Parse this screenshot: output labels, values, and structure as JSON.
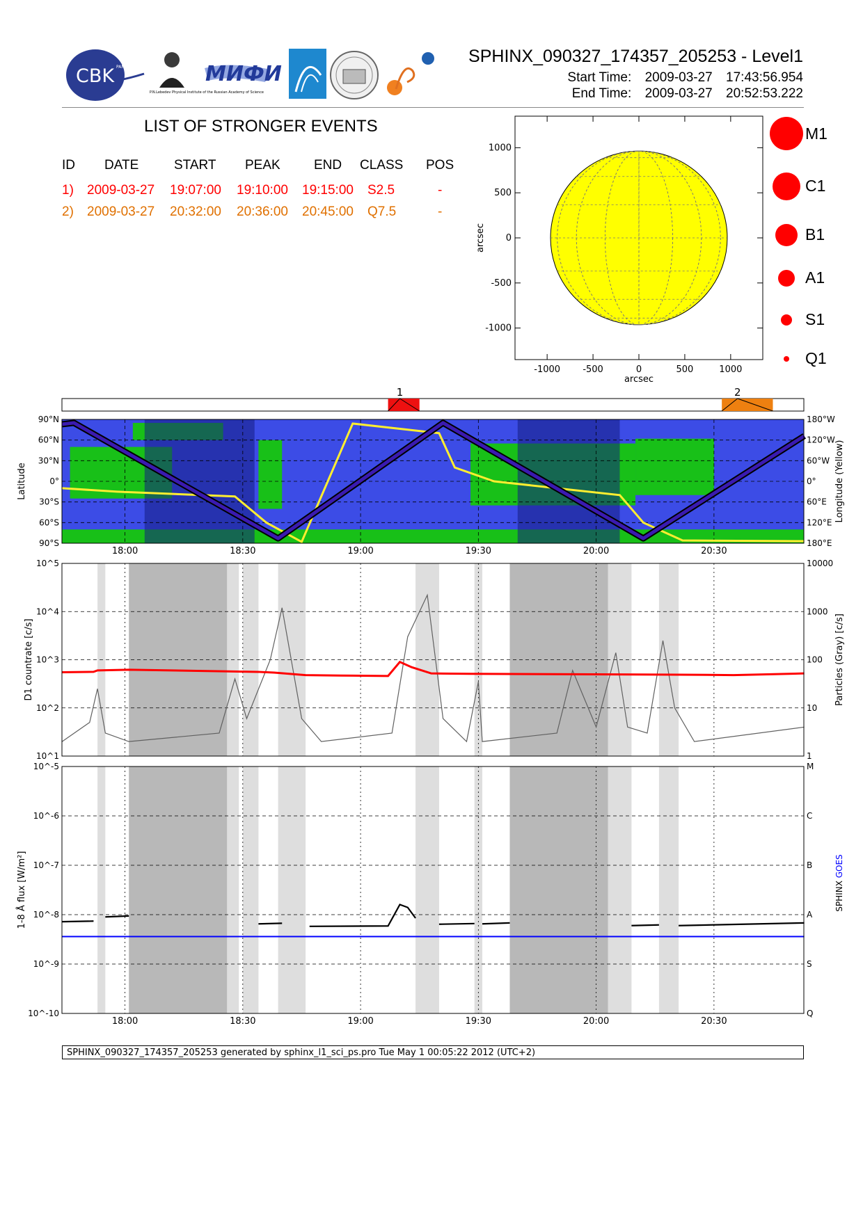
{
  "header": {
    "title": "SPHINX_090327_174357_205253 - Level1",
    "start_label": "Start Time:",
    "start_date": "2009-03-27",
    "start_time": "17:43:56.954",
    "end_label": "End Time:",
    "end_date": "2009-03-27",
    "end_time": "20:52:53.222",
    "logos": {
      "cbk": "CBK",
      "cbk_sub": "PAN",
      "lebedev": "P.N.Lebedev Physical Institute of the Russian Academy of Science",
      "mifi": "MИФИ"
    }
  },
  "events": {
    "title": "LIST OF STRONGER EVENTS",
    "columns": [
      "ID",
      "DATE",
      "START",
      "PEAK",
      "END",
      "CLASS",
      "POS"
    ],
    "rows": [
      {
        "id": "1)",
        "date": "2009-03-27",
        "start": "19:07:00",
        "peak": "19:10:00",
        "end": "19:15:00",
        "class": "S2.5",
        "pos": "-",
        "color": "#ff0000"
      },
      {
        "id": "2)",
        "date": "2009-03-27",
        "start": "20:32:00",
        "peak": "20:36:00",
        "end": "20:45:00",
        "class": "Q7.5",
        "pos": "-",
        "color": "#e07000"
      }
    ]
  },
  "class_legend": [
    "M1",
    "C1",
    "B1",
    "A1",
    "S1",
    "Q1"
  ],
  "colors": {
    "event1": "#ee1010",
    "event2": "#ee8010",
    "ocean": "#3c4ce6",
    "land": "#18c018",
    "night": "#141e82",
    "longitude_line": "#ffee30",
    "countrate": "#ff0000",
    "particles": "#606060",
    "goes": "#0000ff",
    "sun": "#ffff00"
  },
  "chart_data": [
    {
      "type": "scatter",
      "name": "solar-disk-map",
      "xlabel": "arcsec",
      "ylabel": "arcsec",
      "xlim": [
        -1350,
        1350
      ],
      "ylim": [
        -1350,
        1350
      ],
      "xticks": [
        "-1000",
        "-500",
        "0",
        "500",
        "1000"
      ],
      "yticks": [
        "-1000",
        "-500",
        "0",
        "500",
        "1000"
      ],
      "xtick_values": [
        -1000,
        -500,
        0,
        500,
        1000
      ],
      "ytick_values": [
        -1000,
        -500,
        0,
        500,
        1000
      ],
      "solar_radius_arcsec": 963,
      "points": []
    },
    {
      "type": "bar",
      "name": "event-timeline",
      "event_ids": [
        "1",
        "2"
      ],
      "event_windows": [
        [
          "19:07",
          "19:15"
        ],
        [
          "20:32",
          "20:45"
        ]
      ],
      "event_peaks": [
        "19:10",
        "20:36"
      ]
    },
    {
      "type": "line",
      "name": "orbit-track",
      "ylabel": "Latitude",
      "y2label": "Longitude (Yellow)",
      "left_ticks": [
        "90°N",
        "60°N",
        "30°N",
        "0°",
        "30°S",
        "60°S",
        "90°S"
      ],
      "right_ticks": [
        "180°W",
        "120°W",
        "60°W",
        "0°",
        "60°E",
        "120°E",
        "180°E"
      ],
      "x_ticks": [
        "18:00",
        "18:30",
        "19:00",
        "19:30",
        "20:00",
        "20:30"
      ],
      "latitude_track": {
        "x": [
          "17:44",
          "17:47",
          "18:39",
          "19:21",
          "20:12",
          "20:53"
        ],
        "y": [
          83,
          85,
          -83,
          85,
          -83,
          66
        ]
      },
      "night_intervals": [
        [
          "18:05",
          "18:33"
        ],
        [
          "19:40",
          "20:06"
        ]
      ]
    },
    {
      "type": "line",
      "name": "d1-countrate",
      "ylabel": "D1 countrate [c/s]",
      "y2label": "Particles (Gray) [c/s]",
      "yscale": "log",
      "ylim": [
        10,
        100000
      ],
      "y2lim": [
        1,
        10000
      ],
      "left_ticks": [
        "10^1",
        "10^2",
        "10^3",
        "10^4",
        "10^5"
      ],
      "right_ticks": [
        "1",
        "10",
        "100",
        "1000",
        "10000"
      ],
      "x_ticks": [
        "18:00",
        "18:30",
        "19:00",
        "19:30",
        "20:00",
        "20:30"
      ],
      "shaded_light": [
        [
          "17:53",
          "17:55"
        ],
        [
          "18:26",
          "18:29"
        ],
        [
          "18:30",
          "18:34"
        ],
        [
          "18:39",
          "18:46"
        ],
        [
          "19:14",
          "19:20"
        ],
        [
          "19:29",
          "19:31"
        ],
        [
          "20:03",
          "20:09"
        ],
        [
          "20:16",
          "20:21"
        ]
      ],
      "shaded_dark": [
        [
          "18:01",
          "18:26"
        ],
        [
          "19:38",
          "20:03"
        ]
      ],
      "series": [
        {
          "name": "D1 countrate",
          "color": "#ff0000",
          "x": [
            "17:44",
            "17:52",
            "17:53",
            "18:01",
            "18:34",
            "18:38",
            "18:46",
            "18:55",
            "19:07",
            "19:10",
            "19:13",
            "19:18",
            "19:28",
            "20:21",
            "20:35",
            "20:53"
          ],
          "y": [
            550,
            560,
            600,
            620,
            560,
            540,
            480,
            470,
            460,
            900,
            700,
            520,
            510,
            490,
            480,
            520
          ]
        },
        {
          "name": "Particles (Gray)",
          "color": "#606060",
          "axis": "right",
          "x": [
            "17:44",
            "17:51",
            "17:53",
            "17:55",
            "18:01",
            "18:24",
            "18:28",
            "18:31",
            "18:37",
            "18:40",
            "18:45",
            "18:50",
            "19:08",
            "19:12",
            "19:17",
            "19:21",
            "19:27",
            "19:30",
            "19:31",
            "19:50",
            "19:54",
            "20:00",
            "20:05",
            "20:08",
            "20:13",
            "20:17",
            "20:20",
            "20:25",
            "20:53"
          ],
          "y": [
            2,
            5,
            25,
            3,
            2,
            3,
            40,
            6,
            100,
            1200,
            6,
            2,
            3,
            300,
            2200,
            6,
            2,
            35,
            2,
            3,
            60,
            4,
            140,
            4,
            3,
            250,
            10,
            2,
            4
          ]
        }
      ]
    },
    {
      "type": "line",
      "name": "goes-flux",
      "ylabel": "1-8 Å flux [W/m²]",
      "yscale": "log",
      "ylim": [
        1e-10,
        1e-05
      ],
      "left_ticks": [
        "10^-10",
        "10^-9",
        "10^-8",
        "10^-7",
        "10^-6",
        "10^-5"
      ],
      "right_ticks": [
        "Q",
        "S",
        "A",
        "B",
        "C",
        "M"
      ],
      "x_ticks": [
        "18:00",
        "18:30",
        "19:00",
        "19:30",
        "20:00",
        "20:30"
      ],
      "legend": [
        "SPHINX",
        "GOES"
      ],
      "series": [
        {
          "name": "SPHINX",
          "color": "#000000",
          "segments": [
            {
              "x": [
                "17:44",
                "17:52"
              ],
              "y": [
                7.2e-09,
                7.4e-09
              ]
            },
            {
              "x": [
                "17:55",
                "18:01"
              ],
              "y": [
                9e-09,
                9.4e-09
              ]
            },
            {
              "x": [
                "18:34",
                "18:40"
              ],
              "y": [
                6.5e-09,
                6.7e-09
              ]
            },
            {
              "x": [
                "18:47",
                "19:07",
                "19:10",
                "19:12",
                "19:14"
              ],
              "y": [
                5.8e-09,
                5.9e-09,
                1.6e-08,
                1.4e-08,
                8.5e-09
              ]
            },
            {
              "x": [
                "19:20",
                "19:29"
              ],
              "y": [
                6.4e-09,
                6.6e-09
              ]
            },
            {
              "x": [
                "19:31",
                "19:38"
              ],
              "y": [
                6.5e-09,
                6.8e-09
              ]
            },
            {
              "x": [
                "20:09",
                "20:16"
              ],
              "y": [
                6e-09,
                6.2e-09
              ]
            },
            {
              "x": [
                "20:21",
                "20:53"
              ],
              "y": [
                6e-09,
                6.8e-09
              ]
            }
          ]
        },
        {
          "name": "GOES",
          "color": "#0000ff",
          "x": [
            "17:44",
            "20:53"
          ],
          "y": [
            3.6e-09,
            3.6e-09
          ]
        }
      ]
    }
  ],
  "footer": "SPHINX_090327_174357_205253 generated by sphinx_l1_sci_ps.pro Tue May  1 00:05:22 2012 (UTC+2)"
}
